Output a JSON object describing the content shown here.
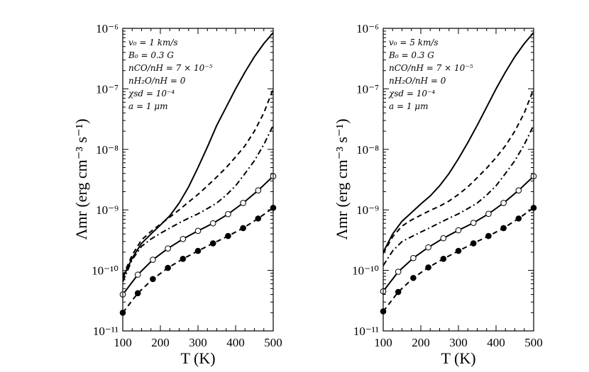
{
  "chart_data": [
    {
      "type": "line",
      "xlabel": "T (K)",
      "ylabel": "Λmr (erg cm⁻³ s⁻¹)",
      "xlim": [
        100,
        500
      ],
      "ylim": [
        1e-11,
        1e-06
      ],
      "yscale": "log",
      "x_ticks": [
        100,
        200,
        300,
        400,
        500
      ],
      "y_ticks": [
        "10⁻¹¹",
        "10⁻¹⁰",
        "10⁻⁹",
        "10⁻⁸",
        "10⁻⁷",
        "10⁻⁶"
      ],
      "annotations": [
        "v₀ = 1 km/s",
        "B₀ = 0.3 G",
        "nCO/nH = 7 × 10⁻⁵",
        "nH₂O/nH = 0",
        "χsd = 10⁻⁴",
        "a = 1 μm"
      ],
      "series": [
        {
          "name": "solid-upper",
          "style": "solid",
          "x": [
            100,
            125,
            150,
            175,
            200,
            225,
            250,
            275,
            300,
            325,
            350,
            375,
            400,
            425,
            450,
            475,
            500
          ],
          "y": [
            7.5e-11,
            1.6e-10,
            2.8e-10,
            4e-10,
            5.6e-10,
            8e-10,
            1.3e-09,
            2.4e-09,
            5e-09,
            1.1e-08,
            2.5e-08,
            5e-08,
            1e-07,
            1.9e-07,
            3.4e-07,
            5.6e-07,
            8.5e-07
          ]
        },
        {
          "name": "dashed-upper",
          "style": "dashed",
          "x": [
            100,
            125,
            150,
            175,
            200,
            225,
            250,
            275,
            300,
            325,
            350,
            375,
            400,
            425,
            450,
            475,
            500
          ],
          "y": [
            8e-11,
            1.8e-10,
            3.2e-10,
            4.4e-10,
            5.8e-10,
            7.6e-10,
            1e-09,
            1.35e-09,
            1.8e-09,
            2.5e-09,
            3.5e-09,
            5e-09,
            7.5e-09,
            1.15e-08,
            2e-08,
            4e-08,
            1e-07
          ]
        },
        {
          "name": "dash-dot",
          "style": "dashdot",
          "x": [
            100,
            125,
            150,
            175,
            200,
            225,
            250,
            275,
            300,
            325,
            350,
            375,
            400,
            425,
            450,
            475,
            500
          ],
          "y": [
            6.5e-11,
            1.5e-10,
            2.5e-10,
            3.3e-10,
            4.1e-10,
            5e-10,
            6.1e-10,
            7.3e-10,
            8.6e-10,
            1.05e-09,
            1.3e-09,
            1.75e-09,
            2.5e-09,
            4e-09,
            6.5e-09,
            1.2e-08,
            2.5e-08
          ]
        },
        {
          "name": "solid-open-circles",
          "style": "solid",
          "marker": "open",
          "x": [
            100,
            140,
            180,
            220,
            260,
            300,
            340,
            380,
            420,
            460,
            500
          ],
          "y": [
            4e-11,
            8.5e-11,
            1.5e-10,
            2.3e-10,
            3.3e-10,
            4.5e-10,
            6e-10,
            8.5e-10,
            1.3e-09,
            2.1e-09,
            3.6e-09
          ]
        },
        {
          "name": "dashed-filled-circles",
          "style": "dashed",
          "marker": "filled",
          "x": [
            100,
            140,
            180,
            220,
            260,
            300,
            340,
            380,
            420,
            460,
            500
          ],
          "y": [
            2e-11,
            4.2e-11,
            7.2e-11,
            1.1e-10,
            1.55e-10,
            2.1e-10,
            2.8e-10,
            3.7e-10,
            5e-10,
            7.2e-10,
            1.08e-09
          ]
        }
      ]
    },
    {
      "type": "line",
      "xlabel": "T (K)",
      "ylabel": "Λmr (erg cm⁻³ s⁻¹)",
      "xlim": [
        100,
        500
      ],
      "ylim": [
        1e-11,
        1e-06
      ],
      "yscale": "log",
      "x_ticks": [
        100,
        200,
        300,
        400,
        500
      ],
      "y_ticks": [
        "10⁻¹¹",
        "10⁻¹⁰",
        "10⁻⁹",
        "10⁻⁸",
        "10⁻⁷",
        "10⁻⁶"
      ],
      "annotations": [
        "v₀ = 5 km/s",
        "B₀ = 0.3 G",
        "nCO/nH = 7 × 10⁻⁵",
        "nH₂O/nH = 0",
        "χsd = 10⁻⁴",
        "a = 1 μm"
      ],
      "series": [
        {
          "name": "solid-upper",
          "style": "solid",
          "x": [
            100,
            125,
            150,
            175,
            200,
            225,
            250,
            275,
            300,
            325,
            350,
            375,
            400,
            425,
            450,
            475,
            500
          ],
          "y": [
            2e-10,
            4e-10,
            6.5e-10,
            9e-10,
            1.25e-09,
            1.7e-09,
            2.5e-09,
            4e-09,
            7e-09,
            1.3e-08,
            2.5e-08,
            5e-08,
            1e-07,
            1.9e-07,
            3.4e-07,
            5.6e-07,
            8.5e-07
          ]
        },
        {
          "name": "dashed-upper",
          "style": "dashed",
          "x": [
            100,
            125,
            150,
            175,
            200,
            225,
            250,
            275,
            300,
            325,
            350,
            375,
            400,
            425,
            450,
            475,
            500
          ],
          "y": [
            1.9e-10,
            3.6e-10,
            5.4e-10,
            6.8e-10,
            8.2e-10,
            9.8e-10,
            1.15e-09,
            1.4e-09,
            1.8e-09,
            2.4e-09,
            3.4e-09,
            4.9e-09,
            7.3e-09,
            1.15e-08,
            2e-08,
            4e-08,
            1e-07
          ]
        },
        {
          "name": "dash-dot",
          "style": "dashdot",
          "x": [
            100,
            125,
            150,
            175,
            200,
            225,
            250,
            275,
            300,
            325,
            350,
            375,
            400,
            425,
            450,
            475,
            500
          ],
          "y": [
            1.2e-10,
            2.1e-10,
            3e-10,
            3.6e-10,
            4.3e-10,
            5.1e-10,
            6.1e-10,
            7.3e-10,
            8.6e-10,
            1.05e-09,
            1.3e-09,
            1.75e-09,
            2.5e-09,
            4e-09,
            6.5e-09,
            1.2e-08,
            2.5e-08
          ]
        },
        {
          "name": "solid-open-circles",
          "style": "solid",
          "marker": "open",
          "x": [
            100,
            140,
            180,
            220,
            260,
            300,
            340,
            380,
            420,
            460,
            500
          ],
          "y": [
            4.5e-11,
            9.5e-11,
            1.6e-10,
            2.4e-10,
            3.4e-10,
            4.6e-10,
            6.1e-10,
            8.6e-10,
            1.3e-09,
            2.1e-09,
            3.6e-09
          ]
        },
        {
          "name": "dashed-filled-circles",
          "style": "dashed",
          "marker": "filled",
          "x": [
            100,
            140,
            180,
            220,
            260,
            300,
            340,
            380,
            420,
            460,
            500
          ],
          "y": [
            2.1e-11,
            4.4e-11,
            7.5e-11,
            1.12e-10,
            1.55e-10,
            2.1e-10,
            2.8e-10,
            3.7e-10,
            5e-10,
            7.2e-10,
            1.08e-09
          ]
        }
      ]
    }
  ]
}
